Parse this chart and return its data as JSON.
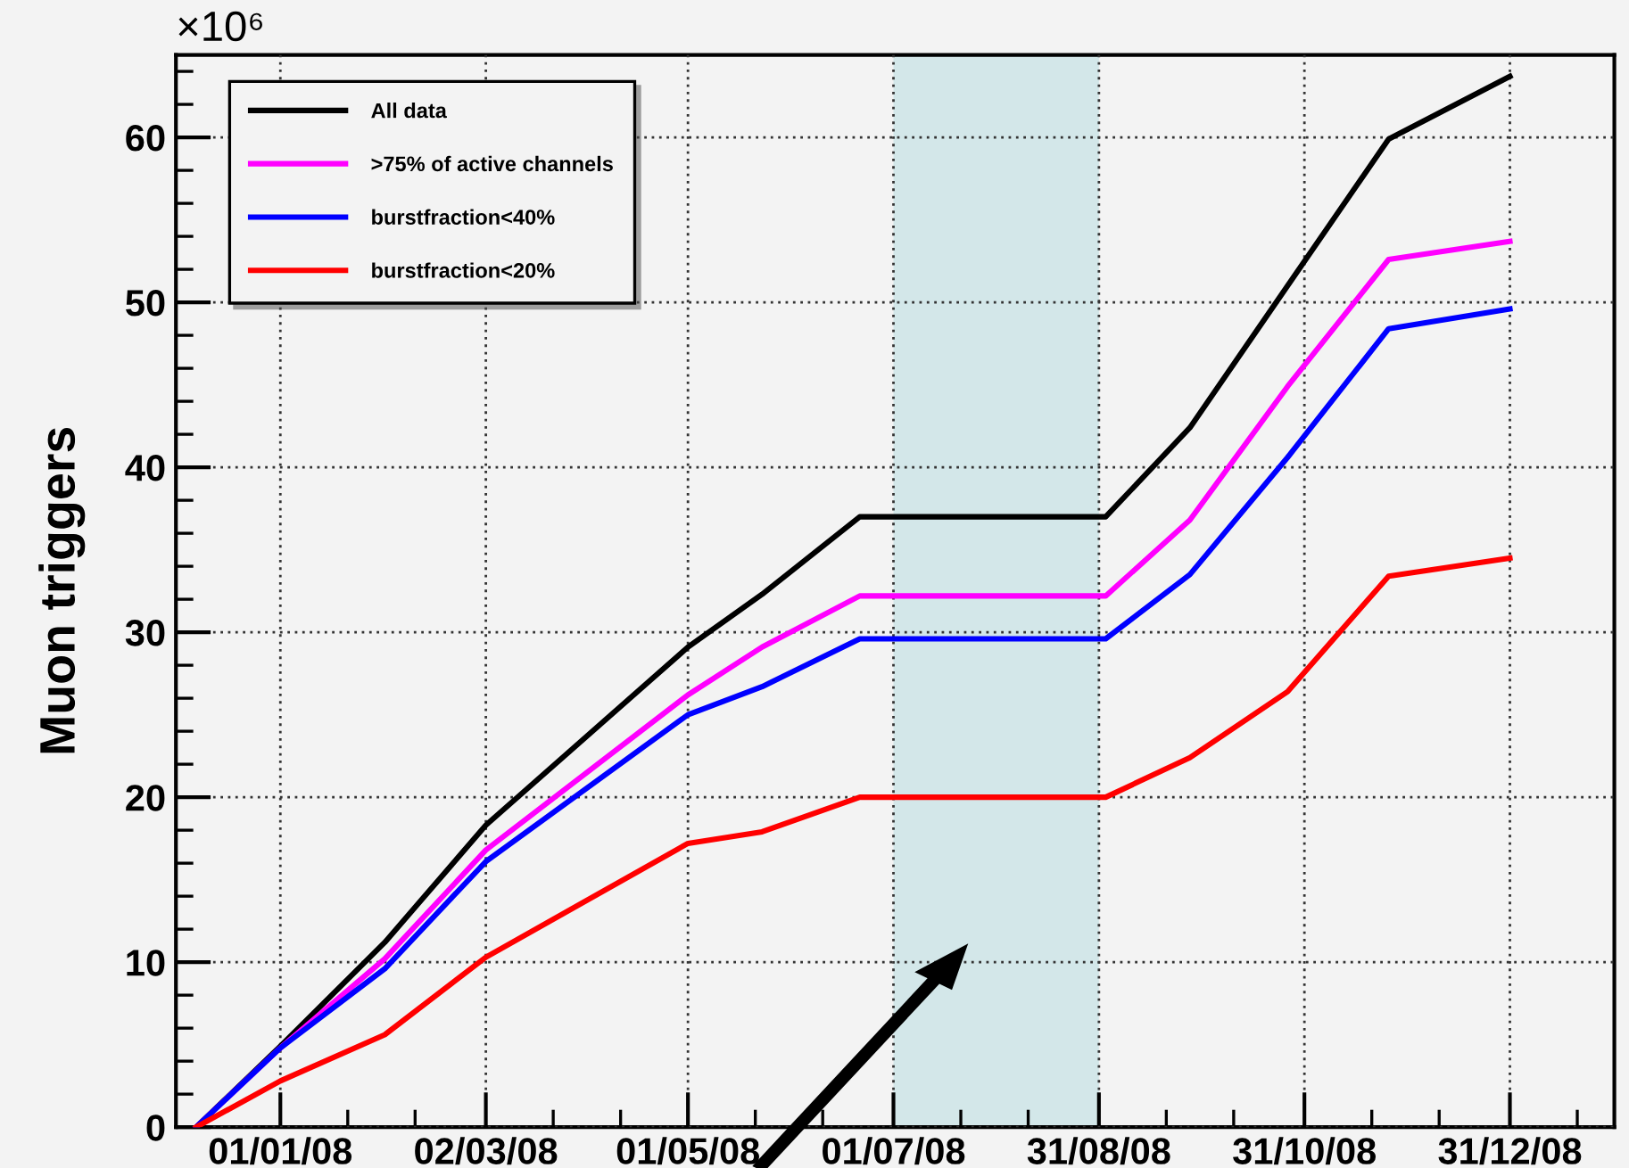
{
  "chart_data": {
    "type": "line",
    "ylabel": "Muon triggers",
    "annotations": [
      "×10⁶"
    ],
    "x": [
      "2007-12-07",
      "2008-01-01",
      "2008-02-01",
      "2008-03-02",
      "2008-05-01",
      "2008-05-23",
      "2008-06-21",
      "2008-09-02",
      "2008-09-27",
      "2008-10-26",
      "2008-11-25",
      "2008-12-31"
    ],
    "series": [
      {
        "name": "All data",
        "color": "#000000",
        "values": [
          0,
          4.9,
          11.2,
          18.3,
          29.1,
          32.3,
          37.0,
          37.0,
          42.4,
          51.0,
          59.9,
          63.7
        ]
      },
      {
        "name": ">75% of active channels",
        "color": "#ff00ff",
        "values": [
          0,
          4.8,
          10.2,
          16.8,
          26.2,
          29.1,
          32.2,
          32.2,
          36.8,
          44.9,
          52.6,
          53.7
        ]
      },
      {
        "name": "burstfraction<40%",
        "color": "#0000ff",
        "values": [
          0,
          4.8,
          9.6,
          16.1,
          25.0,
          26.7,
          29.6,
          29.6,
          33.5,
          40.6,
          48.4,
          49.6
        ]
      },
      {
        "name": "burstfraction<20%",
        "color": "#ff0000",
        "values": [
          0,
          2.8,
          5.6,
          10.3,
          17.2,
          17.9,
          20.0,
          20.0,
          22.4,
          26.4,
          33.4,
          34.5
        ]
      }
    ],
    "xlim": [
      "2007-12-01",
      "2009-01-31"
    ],
    "xticks": [
      {
        "value": "2008-01-01",
        "label": "01/01/08"
      },
      {
        "value": "2008-03-02",
        "label": "02/03/08"
      },
      {
        "value": "2008-05-01",
        "label": "01/05/08"
      },
      {
        "value": "2008-07-01",
        "label": "01/07/08"
      },
      {
        "value": "2008-08-31",
        "label": "31/08/08"
      },
      {
        "value": "2008-10-31",
        "label": "31/10/08"
      },
      {
        "value": "2008-12-31",
        "label": "31/12/08"
      },
      {
        "value": "2008-01-21",
        "label": null
      },
      {
        "value": "2008-02-10",
        "label": null
      },
      {
        "value": "2008-03-22",
        "label": null
      },
      {
        "value": "2008-04-11",
        "label": null
      },
      {
        "value": "2008-05-21",
        "label": null
      },
      {
        "value": "2008-06-10",
        "label": null
      },
      {
        "value": "2008-07-21",
        "label": null
      },
      {
        "value": "2008-08-10",
        "label": null
      },
      {
        "value": "2008-09-20",
        "label": null
      },
      {
        "value": "2008-10-10",
        "label": null
      },
      {
        "value": "2008-11-20",
        "label": null
      },
      {
        "value": "2008-12-10",
        "label": null
      },
      {
        "value": "2009-01-20",
        "label": null
      }
    ],
    "ylim": [
      0,
      65
    ],
    "yticks": [
      0,
      10,
      20,
      30,
      40,
      50,
      60,
      {
        "value": 2,
        "label": null
      },
      {
        "value": 4,
        "label": null
      },
      {
        "value": 6,
        "label": null
      },
      {
        "value": 8,
        "label": null
      },
      {
        "value": 12,
        "label": null
      },
      {
        "value": 14,
        "label": null
      },
      {
        "value": 16,
        "label": null
      },
      {
        "value": 18,
        "label": null
      },
      {
        "value": 22,
        "label": null
      },
      {
        "value": 24,
        "label": null
      },
      {
        "value": 26,
        "label": null
      },
      {
        "value": 28,
        "label": null
      },
      {
        "value": 32,
        "label": null
      },
      {
        "value": 34,
        "label": null
      },
      {
        "value": 36,
        "label": null
      },
      {
        "value": 38,
        "label": null
      },
      {
        "value": 42,
        "label": null
      },
      {
        "value": 44,
        "label": null
      },
      {
        "value": 46,
        "label": null
      },
      {
        "value": 48,
        "label": null
      },
      {
        "value": 52,
        "label": null
      },
      {
        "value": 54,
        "label": null
      },
      {
        "value": 56,
        "label": null
      },
      {
        "value": 58,
        "label": null
      },
      {
        "value": 62,
        "label": null
      },
      {
        "value": 64,
        "label": null
      }
    ],
    "bands": [
      {
        "axis": "x",
        "from": "2008-07-01",
        "to": "2008-08-31",
        "color": "#d3e7e9"
      }
    ],
    "grid": true,
    "legend": "top left",
    "marker": "none",
    "line_style": "solid"
  }
}
